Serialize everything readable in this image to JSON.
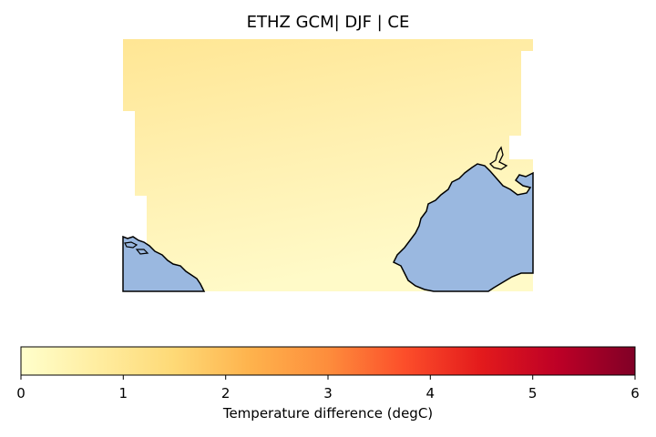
{
  "title": "ETHZ GCM| DJF | CE",
  "colorbar": {
    "label": "Temperature difference (degC)",
    "ticks": [
      "0",
      "1",
      "2",
      "3",
      "4",
      "5",
      "6"
    ],
    "range": [
      0,
      6
    ],
    "colormap": "YlOrRd",
    "stops": [
      "#ffffcc",
      "#ffeda0",
      "#fed976",
      "#feb24c",
      "#fd8d3c",
      "#fc4e2a",
      "#e31a1c",
      "#bd0026",
      "#800026"
    ]
  },
  "map": {
    "field_value_range_estimate": [
      0.2,
      1.0
    ],
    "land_color": "#ffeb9a",
    "sea_color": "#9ab8e0",
    "coastline_color": "#000000"
  }
}
